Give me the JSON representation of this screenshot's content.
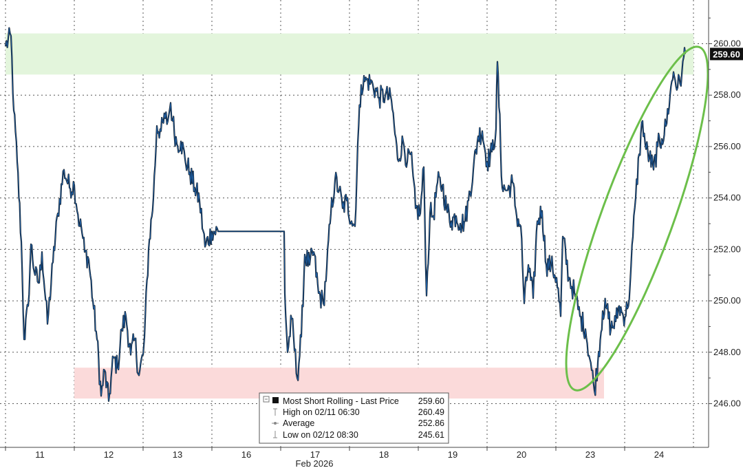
{
  "chart_data": {
    "type": "line",
    "title": "",
    "xlabel": "Feb 2026",
    "ylabel": "",
    "x_tick_labels": [
      "11",
      "12",
      "13",
      "16",
      "17",
      "18",
      "19",
      "20",
      "23",
      "24"
    ],
    "y_tick_labels": [
      "246.00",
      "248.00",
      "250.00",
      "252.00",
      "254.00",
      "256.00",
      "258.00",
      "260.00"
    ],
    "ylim": [
      244.3,
      261.7
    ],
    "grid": true,
    "last_price_label": "259.60",
    "highlight_zones": [
      {
        "name": "resistance",
        "ymin": 258.8,
        "ymax": 260.4,
        "color": "#e3f5dc"
      },
      {
        "name": "support",
        "ymin": 246.2,
        "ymax": 247.4,
        "color": "#fbdada"
      }
    ],
    "series": [
      {
        "name": "Most Short Rolling - Last Price",
        "color": "#1d5b9e",
        "anchors": [
          [
            0.0,
            259.9
          ],
          [
            0.8,
            260.3
          ],
          [
            1.2,
            257.4
          ],
          [
            1.7,
            255.4
          ],
          [
            2.3,
            252.3
          ],
          [
            2.7,
            248.5
          ],
          [
            3.3,
            249.8
          ],
          [
            3.7,
            252.2
          ],
          [
            4.3,
            251.0
          ],
          [
            4.9,
            250.7
          ],
          [
            5.3,
            251.9
          ],
          [
            6.1,
            249.1
          ],
          [
            6.9,
            251.5
          ],
          [
            7.6,
            253.4
          ],
          [
            8.5,
            255.1
          ],
          [
            9.3,
            254.4
          ],
          [
            10.0,
            254.5
          ],
          [
            10.8,
            252.9
          ],
          [
            11.0,
            252.9
          ],
          [
            11.5,
            251.9
          ],
          [
            12.1,
            251.6
          ],
          [
            12.7,
            250.0
          ],
          [
            13.3,
            248.5
          ],
          [
            13.9,
            246.3
          ],
          [
            14.4,
            247.3
          ],
          [
            15.0,
            246.1
          ],
          [
            15.7,
            247.8
          ],
          [
            16.3,
            247.4
          ],
          [
            16.9,
            248.9
          ],
          [
            17.5,
            249.4
          ],
          [
            18.2,
            247.9
          ],
          [
            18.8,
            248.5
          ],
          [
            19.4,
            247.1
          ],
          [
            20.0,
            247.9
          ],
          [
            20.2,
            248.6
          ],
          [
            20.8,
            252.0
          ],
          [
            21.5,
            254.0
          ],
          [
            22.0,
            256.8
          ],
          [
            22.6,
            256.6
          ],
          [
            23.2,
            257.1
          ],
          [
            23.6,
            257.0
          ],
          [
            24.0,
            257.7
          ],
          [
            24.3,
            257.0
          ],
          [
            24.9,
            256.1
          ],
          [
            25.5,
            256.2
          ],
          [
            26.1,
            255.5
          ],
          [
            26.8,
            255.0
          ],
          [
            27.5,
            254.4
          ],
          [
            28.2,
            253.9
          ],
          [
            29.0,
            252.1
          ],
          [
            30.0,
            252.7
          ],
          [
            30.9,
            252.7
          ],
          [
            40.5,
            252.7
          ],
          [
            40.6,
            250.3
          ],
          [
            41.0,
            248.0
          ],
          [
            41.6,
            249.3
          ],
          [
            42.4,
            247.0
          ],
          [
            43.0,
            248.6
          ],
          [
            43.5,
            251.8
          ],
          [
            44.2,
            251.4
          ],
          [
            44.8,
            251.9
          ],
          [
            45.5,
            250.3
          ],
          [
            46.2,
            249.9
          ],
          [
            46.7,
            251.3
          ],
          [
            47.3,
            253.4
          ],
          [
            47.9,
            254.7
          ],
          [
            48.5,
            254.3
          ],
          [
            49.0,
            253.6
          ],
          [
            49.6,
            253.9
          ],
          [
            50.3,
            253.1
          ],
          [
            50.8,
            252.9
          ],
          [
            51.2,
            256.1
          ],
          [
            51.7,
            258.4
          ],
          [
            52.5,
            258.6
          ],
          [
            53.4,
            258.4
          ],
          [
            54.3,
            257.9
          ],
          [
            55.2,
            258.0
          ],
          [
            56.1,
            257.8
          ],
          [
            57.0,
            255.5
          ],
          [
            57.8,
            256.2
          ],
          [
            58.4,
            255.4
          ],
          [
            58.9,
            255.7
          ],
          [
            59.6,
            253.6
          ],
          [
            60.3,
            253.4
          ],
          [
            60.8,
            255.2
          ],
          [
            61.2,
            250.2
          ],
          [
            61.7,
            253.4
          ],
          [
            62.2,
            253.3
          ],
          [
            62.8,
            254.6
          ],
          [
            63.5,
            254.5
          ],
          [
            64.1,
            253.6
          ],
          [
            64.8,
            253.1
          ],
          [
            65.5,
            253.3
          ],
          [
            66.1,
            253.0
          ],
          [
            66.8,
            253.1
          ],
          [
            67.3,
            253.9
          ],
          [
            68.0,
            255.1
          ],
          [
            68.7,
            256.4
          ],
          [
            69.3,
            256.6
          ],
          [
            70.0,
            255.4
          ],
          [
            70.7,
            255.8
          ],
          [
            71.3,
            256.7
          ],
          [
            71.5,
            259.3
          ],
          [
            72.2,
            254.4
          ],
          [
            73.0,
            254.3
          ],
          [
            73.7,
            254.6
          ],
          [
            74.3,
            253.3
          ],
          [
            74.9,
            252.9
          ],
          [
            75.4,
            249.9
          ],
          [
            76.0,
            251.4
          ],
          [
            76.7,
            250.1
          ],
          [
            77.3,
            253.1
          ],
          [
            78.0,
            253.5
          ],
          [
            78.6,
            251.4
          ],
          [
            79.3,
            251.4
          ],
          [
            80.1,
            250.9
          ],
          [
            80.7,
            249.4
          ],
          [
            81.0,
            252.5
          ],
          [
            81.9,
            250.9
          ],
          [
            82.7,
            250.3
          ],
          [
            83.5,
            249.4
          ],
          [
            84.3,
            248.9
          ],
          [
            85.2,
            247.3
          ],
          [
            85.6,
            246.5
          ],
          [
            86.1,
            247.6
          ],
          [
            86.8,
            249.6
          ],
          [
            87.4,
            249.7
          ],
          [
            88.0,
            248.9
          ],
          [
            88.7,
            249.2
          ],
          [
            89.2,
            249.8
          ],
          [
            89.8,
            249.4
          ],
          [
            90.4,
            249.7
          ],
          [
            90.8,
            250.7
          ],
          [
            91.2,
            252.5
          ],
          [
            91.6,
            254.0
          ],
          [
            92.1,
            255.7
          ],
          [
            92.6,
            257.0
          ],
          [
            93.1,
            255.9
          ],
          [
            93.6,
            255.6
          ],
          [
            94.2,
            255.1
          ],
          [
            94.8,
            256.0
          ],
          [
            95.4,
            256.3
          ],
          [
            96.0,
            256.8
          ],
          [
            96.6,
            258.0
          ],
          [
            97.1,
            258.9
          ],
          [
            97.7,
            258.3
          ],
          [
            98.3,
            258.8
          ],
          [
            98.6,
            259.5
          ],
          [
            98.8,
            259.6
          ]
        ]
      }
    ],
    "annotation_ellipse": {
      "color": "#6cbf4a"
    },
    "legend": {
      "series_label": "Most Short Rolling - Last Price",
      "series_value": "259.60",
      "rows": [
        {
          "label": "High on 02/11 06:30",
          "value": "260.49"
        },
        {
          "label": "Average",
          "value": "252.86"
        },
        {
          "label": "Low on 02/12 08:30",
          "value": "245.61"
        }
      ]
    }
  }
}
